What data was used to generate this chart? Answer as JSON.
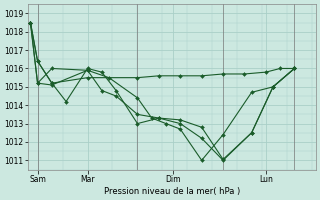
{
  "background_color": "#cce8e0",
  "grid_color": "#aacfc8",
  "line_color": "#1a5c2a",
  "marker_color": "#1a5c2a",
  "xlabel": "Pression niveau de la mer( hPa )",
  "ylim": [
    1010.5,
    1019.5
  ],
  "yticks": [
    1011,
    1012,
    1013,
    1014,
    1015,
    1016,
    1017,
    1018,
    1019
  ],
  "day_positions": [
    0.5,
    4.0,
    10.0,
    16.5
  ],
  "day_labels": [
    "Sam",
    "Mar",
    "Dim",
    "Lun"
  ],
  "vline_positions": [
    0,
    0.5,
    7.5,
    13.5,
    18.5
  ],
  "xlim": [
    -0.2,
    20.0
  ],
  "series": [
    {
      "x": [
        0.0,
        0.5,
        1.5,
        4.0,
        7.5,
        9.0,
        10.5,
        12.0,
        13.5,
        15.0,
        16.5,
        17.5,
        18.5
      ],
      "y": [
        1018.5,
        1016.4,
        1015.2,
        1015.5,
        1015.5,
        1015.6,
        1015.6,
        1015.6,
        1015.7,
        1015.7,
        1015.8,
        1016.0,
        1016.0
      ]
    },
    {
      "x": [
        0.0,
        0.5,
        1.5,
        2.5,
        4.0,
        5.0,
        6.0,
        7.5,
        9.0,
        10.5,
        12.0,
        13.5,
        15.5,
        17.0,
        18.5
      ],
      "y": [
        1018.5,
        1016.4,
        1015.2,
        1014.2,
        1016.0,
        1015.8,
        1014.8,
        1013.0,
        1013.3,
        1013.2,
        1012.8,
        1011.05,
        1012.5,
        1015.0,
        1016.0
      ]
    },
    {
      "x": [
        0.0,
        0.5,
        1.5,
        4.0,
        5.0,
        6.0,
        7.5,
        9.0,
        10.5,
        12.0,
        13.5,
        15.5,
        17.0,
        18.5
      ],
      "y": [
        1018.5,
        1015.2,
        1015.1,
        1015.9,
        1014.8,
        1014.5,
        1013.5,
        1013.3,
        1013.0,
        1012.2,
        1011.0,
        1012.5,
        1015.0,
        1016.0
      ]
    },
    {
      "x": [
        0.0,
        0.5,
        1.5,
        4.0,
        5.5,
        7.5,
        8.5,
        9.5,
        10.5,
        12.0,
        13.5,
        15.5,
        17.0,
        18.5
      ],
      "y": [
        1018.5,
        1015.2,
        1016.0,
        1015.9,
        1015.5,
        1014.4,
        1013.3,
        1013.0,
        1012.7,
        1011.0,
        1012.4,
        1014.7,
        1015.0,
        1016.0
      ]
    }
  ]
}
